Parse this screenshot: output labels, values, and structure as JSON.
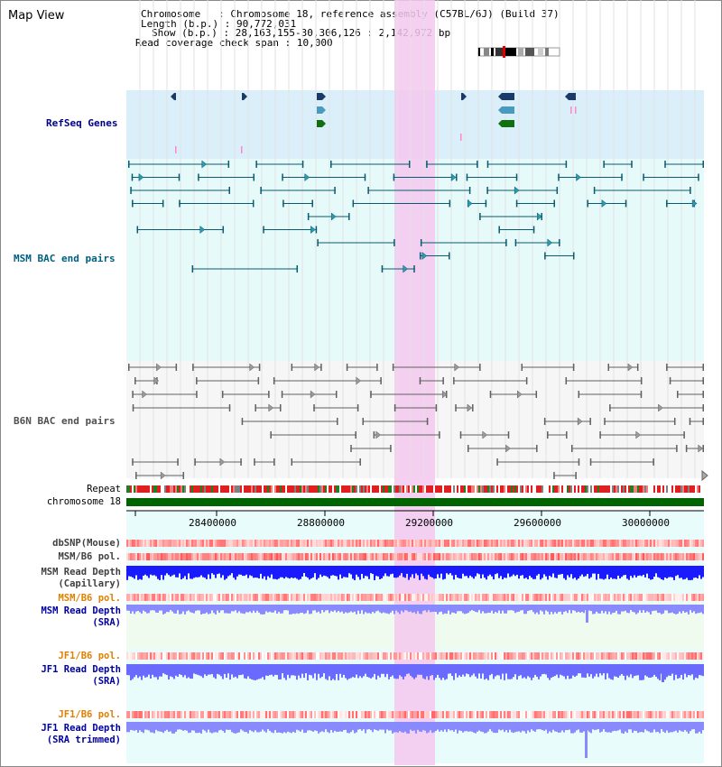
{
  "app": {
    "title": "Map View"
  },
  "info": {
    "chromosome_label": "Chromosome",
    "chromosome_value": "Chromosome 18, reference assembly (C57BL/6J) (Build 37)",
    "length_label": "Length (b.p.)",
    "length_value": "90,772,031",
    "show_label": "Show (b.p.)",
    "show_value": "28,163,155-30,306,126 : 2,142,972 bp",
    "coverage_label": "Read coverage check span",
    "coverage_value": "10,000"
  },
  "tracks": {
    "refseq": "RefSeq Genes",
    "msm_bac": "MSM BAC end pairs",
    "b6n_bac": "B6N BAC end pairs",
    "repeat": "Repeat",
    "chromosome": "chromosome 18",
    "dbsnp": "dbSNP(Mouse)",
    "msm_b6_pol_1": "MSM/B6 pol.",
    "msm_read_depth_cap": "MSM Read Depth\n(Capillary)",
    "msm_b6_pol_2": "MSM/B6 pol.",
    "msm_read_depth_sra": "MSM Read Depth\n(SRA)",
    "jf1_b6_pol_1": "JF1/B6 pol.",
    "jf1_read_depth_sra": "JF1 Read Depth\n(SRA)",
    "jf1_b6_pol_2": "JF1/B6 pol.",
    "jf1_read_depth_trim": "JF1 Read Depth\n(SRA trimmed)"
  },
  "axis": {
    "ticks": [
      "28400000",
      "28800000",
      "29200000",
      "29600000",
      "30000000"
    ]
  },
  "colors": {
    "refseq_text": "#000080",
    "msm_bac_text": "#006080",
    "b6n_bac_text": "#505050",
    "orange_text": "#e08000",
    "blue_text": "#0000a0",
    "highlight": "#f4c8ee",
    "chromosome_green": "#006400"
  }
}
